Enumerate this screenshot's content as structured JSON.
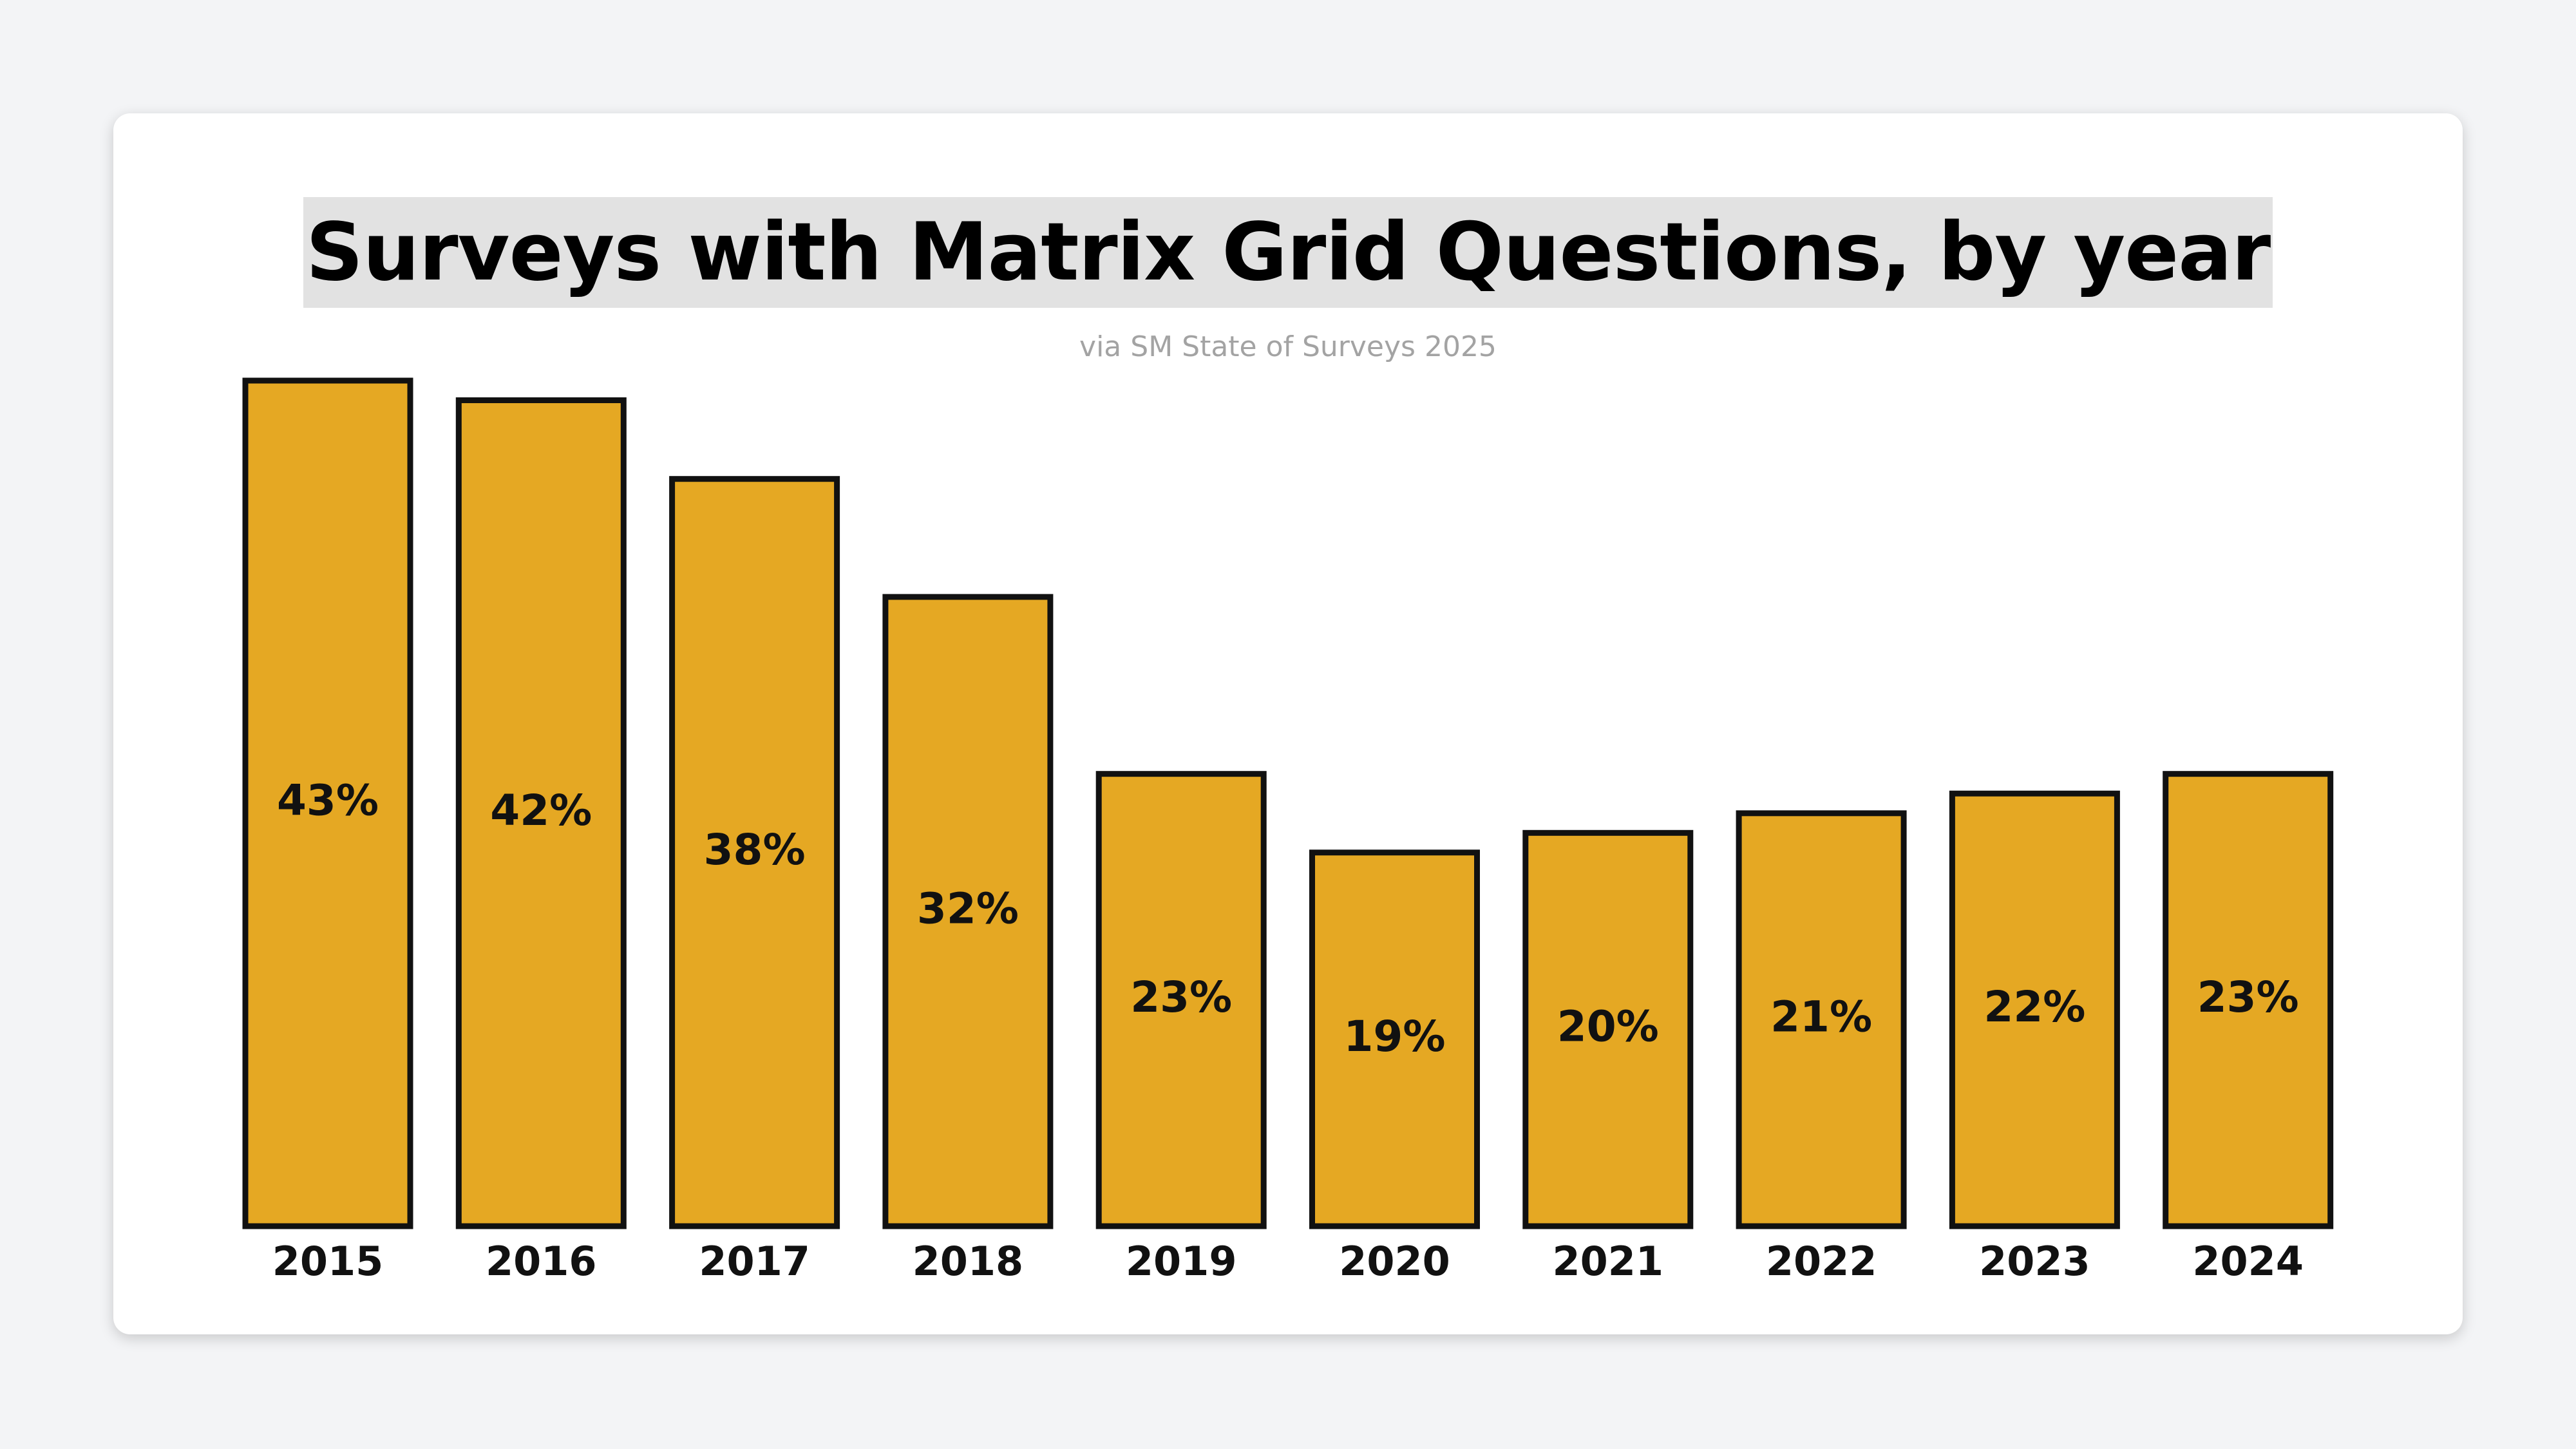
{
  "chart_data": {
    "type": "bar",
    "title": "Surveys with Matrix Grid Questions, by year",
    "subtitle": "via SM State of Surveys 2025",
    "categories": [
      "2015",
      "2016",
      "2017",
      "2018",
      "2019",
      "2020",
      "2021",
      "2022",
      "2023",
      "2024"
    ],
    "values": [
      43,
      42,
      38,
      32,
      23,
      19,
      20,
      21,
      22,
      23
    ],
    "value_labels": [
      "43%",
      "42%",
      "38%",
      "32%",
      "23%",
      "19%",
      "20%",
      "21%",
      "22%",
      "23%"
    ],
    "xlabel": "",
    "ylabel": "",
    "ylim": [
      0,
      43
    ],
    "grid": false,
    "legend": "none",
    "colors": {
      "bar_fill": "#E5A823",
      "bar_stroke": "#111111",
      "title_highlight": "#E2E2E2",
      "subtitle": "#A3A3A3"
    }
  }
}
